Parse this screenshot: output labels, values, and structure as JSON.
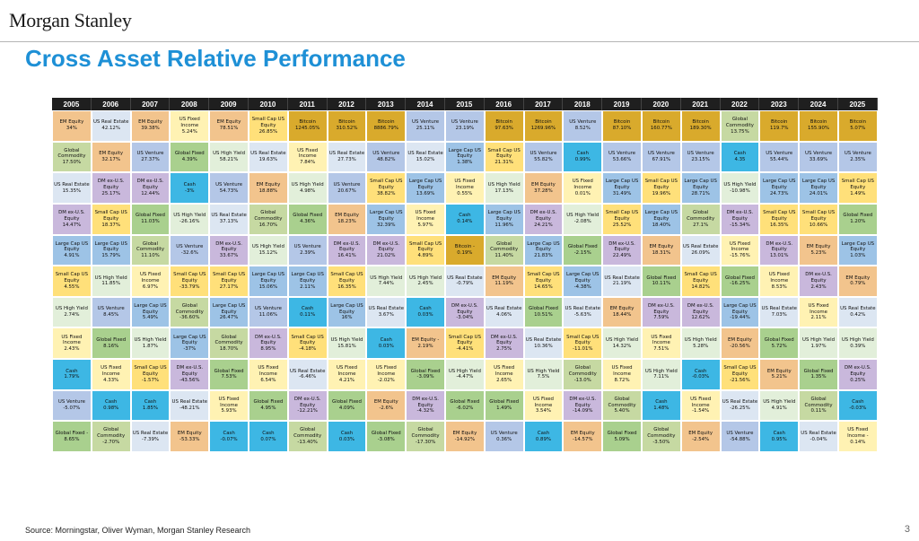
{
  "header": {
    "brand": "Morgan Stanley",
    "title": "Cross Asset Relative Performance"
  },
  "footer": {
    "source": "Source: Morningstar, Oliver Wyman, Morgan Stanley Research",
    "page": "3"
  },
  "asset_colors": {
    "EM Equity": "#F2C48D",
    "US Real Estate": "#DCE6F2",
    "Global Commodity": "#C6D9A2",
    "US Fixed Income": "#FFF2B3",
    "Small Cap US Equity": "#FFE07A",
    "Bitcoin": "#D9AA2C",
    "US Venture": "#B4C7E7",
    "Large Cap US Equity": "#9DC3E6",
    "US High Yield": "#E2EFDA",
    "DM ex-U.S. Equity": "#C9B8DC",
    "Global Fixed": "#A9D08E",
    "Cash": "#3DB7E4"
  },
  "chart_data": {
    "type": "table",
    "title": "Cross Asset Relative Performance",
    "years": [
      "2005",
      "2006",
      "2007",
      "2008",
      "2009",
      "2010",
      "2011",
      "2012",
      "2013",
      "2014",
      "2015",
      "2016",
      "2017",
      "2018",
      "2019",
      "2020",
      "2021",
      "2022",
      "2023",
      "2024",
      "2025"
    ],
    "columns": [
      [
        [
          "EM Equity",
          "34%"
        ],
        [
          "Global Commodity",
          "17.50%"
        ],
        [
          "US Real Estate",
          "15.35%"
        ],
        [
          "DM ex-U.S. Equity",
          "14.47%"
        ],
        [
          "Large Cap US Equity",
          "4.91%"
        ],
        [
          "Small Cap US Equity",
          "4.55%"
        ],
        [
          "US High Yield",
          "2.74%"
        ],
        [
          "US Fixed Income",
          "2.43%"
        ],
        [
          "Cash",
          "1.79%"
        ],
        [
          "US Venture",
          "-5.07%"
        ],
        [
          "Global Fixed -",
          "8.65%"
        ]
      ],
      [
        [
          "US Real Estate",
          "42.12%"
        ],
        [
          "EM Equity",
          "32.17%"
        ],
        [
          "DM ex-U.S. Equity",
          "25.17%"
        ],
        [
          "Small Cap US Equity",
          "18.37%"
        ],
        [
          "Large Cap US Equity",
          "15.79%"
        ],
        [
          "US High Yield",
          "11.85%"
        ],
        [
          "US Venture",
          "8.45%"
        ],
        [
          "Global Fixed",
          "8.16%"
        ],
        [
          "US Fixed Income",
          "4.33%"
        ],
        [
          "Cash",
          "0.98%"
        ],
        [
          "Global Commodity",
          "-2.70%"
        ]
      ],
      [
        [
          "EM Equity",
          "39.38%"
        ],
        [
          "US Venture",
          "27.37%"
        ],
        [
          "DM ex-U.S. Equity",
          "12.44%"
        ],
        [
          "Global Fixed",
          "11.03%"
        ],
        [
          "Global Commodity",
          "11.10%"
        ],
        [
          "US Fixed Income",
          "6.97%"
        ],
        [
          "Large Cap US Equity",
          "5.49%"
        ],
        [
          "US High Yield",
          "1.87%"
        ],
        [
          "Small Cap US Equity",
          "-1.57%"
        ],
        [
          "Cash",
          "1.85%"
        ],
        [
          "US Real Estate",
          "-7.39%"
        ]
      ],
      [
        [
          "US Fixed Income",
          "5.24%"
        ],
        [
          "Global Fixed",
          "4.39%"
        ],
        [
          "Cash",
          "-3%"
        ],
        [
          "US High Yield",
          "-26.16%"
        ],
        [
          "US Venture",
          "-32.6%"
        ],
        [
          "Small Cap US Equity",
          "-33.79%"
        ],
        [
          "Global Commodity",
          "-36.60%"
        ],
        [
          "Large Cap US Equity",
          "-37%"
        ],
        [
          "DM ex-U.S. Equity",
          "-43.56%"
        ],
        [
          "US Real Estate",
          "-48.21%"
        ],
        [
          "EM Equity",
          "-53.33%"
        ]
      ],
      [
        [
          "EM Equity",
          "78.51%"
        ],
        [
          "US High Yield",
          "58.21%"
        ],
        [
          "US Venture",
          "54.73%"
        ],
        [
          "US Real Estate",
          "37.13%"
        ],
        [
          "DM ex-U.S. Equity",
          "33.67%"
        ],
        [
          "Small Cap US Equity",
          "27.17%"
        ],
        [
          "Large Cap US Equity",
          "26.47%"
        ],
        [
          "Global Commodity",
          "18.70%"
        ],
        [
          "Global Fixed",
          "7.53%"
        ],
        [
          "US Fixed Income",
          "5.93%"
        ],
        [
          "Cash",
          "-0.07%"
        ]
      ],
      [
        [
          "Small Cap US Equity",
          "26.85%"
        ],
        [
          "US Real Estate",
          "19.63%"
        ],
        [
          "EM Equity",
          "18.88%"
        ],
        [
          "Global Commodity",
          "16.70%"
        ],
        [
          "US High Yield",
          "15.12%"
        ],
        [
          "Large Cap US Equity",
          "15.06%"
        ],
        [
          "US Venture",
          "11.06%"
        ],
        [
          "DM ex-U.S. Equity",
          "8.95%"
        ],
        [
          "US Fixed Income",
          "6.54%"
        ],
        [
          "Global Fixed",
          "4.95%"
        ],
        [
          "Cash",
          "0.07%"
        ]
      ],
      [
        [
          "Bitcoin",
          "1245.05%"
        ],
        [
          "US Fixed Income",
          "7.84%"
        ],
        [
          "US High Yield",
          "4.98%"
        ],
        [
          "Global Fixed",
          "4.36%"
        ],
        [
          "US Venture",
          "2.39%"
        ],
        [
          "Large Cap US Equity",
          "2.11%"
        ],
        [
          "Cash",
          "0.11%"
        ],
        [
          "Small Cap US Equity",
          "-4.18%"
        ],
        [
          "US Real Estate",
          "-6.46%"
        ],
        [
          "DM ex-U.S. Equity",
          "-12.21%"
        ],
        [
          "Global Commodity",
          "-13.40%"
        ]
      ],
      [
        [
          "Bitcoin",
          "310.52%"
        ],
        [
          "US Real Estate",
          "27.73%"
        ],
        [
          "US Venture",
          "20.67%"
        ],
        [
          "EM Equity",
          "18.23%"
        ],
        [
          "DM ex-U.S. Equity",
          "16.41%"
        ],
        [
          "Small Cap US Equity",
          "16.35%"
        ],
        [
          "Large Cap US Equity",
          "16%"
        ],
        [
          "US High Yield",
          "15.81%"
        ],
        [
          "US Fixed Income",
          "4.21%"
        ],
        [
          "Global Fixed",
          "4.09%"
        ],
        [
          "Cash",
          "0.03%"
        ]
      ],
      [
        [
          "Bitcoin",
          "8886.79%"
        ],
        [
          "US Venture",
          "48.82%"
        ],
        [
          "Small Cap US Equity",
          "38.82%"
        ],
        [
          "Large Cap US Equity",
          "32.39%"
        ],
        [
          "DM ex-U.S. Equity",
          "21.02%"
        ],
        [
          "US High Yield",
          "7.44%"
        ],
        [
          "US Real Estate",
          "3.67%"
        ],
        [
          "Cash",
          "0.03%"
        ],
        [
          "US Fixed Income",
          "-2.02%"
        ],
        [
          "EM Equity",
          "-2.6%"
        ],
        [
          "Global Fixed",
          "-3.08%"
        ]
      ],
      [
        [
          "US Venture",
          "25.11%"
        ],
        [
          "US Real Estate",
          "15.02%"
        ],
        [
          "Large Cap US Equity",
          "13.69%"
        ],
        [
          "US Fixed Income",
          "5.97%"
        ],
        [
          "Small Cap US Equity",
          "4.89%"
        ],
        [
          "US High Yield",
          "2.45%"
        ],
        [
          "Cash",
          "0.03%"
        ],
        [
          "EM Equity -",
          "2.19%"
        ],
        [
          "Global Fixed",
          "-3.09%"
        ],
        [
          "DM ex-U.S. Equity",
          "-4.32%"
        ],
        [
          "Global Commodity",
          "-17.30%"
        ]
      ],
      [
        [
          "US Venture",
          "23.19%"
        ],
        [
          "Large Cap US Equity",
          "1.38%"
        ],
        [
          "US Fixed Income",
          "0.55%"
        ],
        [
          "Cash",
          "0.14%"
        ],
        [
          "Bitcoin -",
          "0.19%"
        ],
        [
          "US Real Estate",
          "-0.79%"
        ],
        [
          "DM ex-U.S. Equity",
          "-3.04%"
        ],
        [
          "Small Cap US Equity",
          "-4.41%"
        ],
        [
          "US High Yield",
          "-4.47%"
        ],
        [
          "Global Fixed",
          "-6.02%"
        ],
        [
          "EM Equity",
          "-14.92%"
        ]
      ],
      [
        [
          "Bitcoin",
          "97.63%"
        ],
        [
          "Small Cap US Equity",
          "21.31%"
        ],
        [
          "US High Yield",
          "17.13%"
        ],
        [
          "Large Cap US Equity",
          "11.96%"
        ],
        [
          "Global Commodity",
          "11.40%"
        ],
        [
          "EM Equity",
          "11.19%"
        ],
        [
          "US Real Estate",
          "4.06%"
        ],
        [
          "DM ex-U.S. Equity",
          "2.75%"
        ],
        [
          "US Fixed Income",
          "2.65%"
        ],
        [
          "Global Fixed",
          "1.49%"
        ],
        [
          "US Venture",
          "0.36%"
        ]
      ],
      [
        [
          "Bitcoin",
          "1269.96%"
        ],
        [
          "US Venture",
          "55.82%"
        ],
        [
          "EM Equity",
          "37.28%"
        ],
        [
          "DM ex-U.S. Equity",
          "24.21%"
        ],
        [
          "Large Cap US Equity",
          "21.83%"
        ],
        [
          "Small Cap US Equity",
          "14.65%"
        ],
        [
          "Global Fixed",
          "10.51%"
        ],
        [
          "US Real Estate",
          "10.36%"
        ],
        [
          "US High Yield",
          "7.5%"
        ],
        [
          "US Fixed Income",
          "3.54%"
        ],
        [
          "Cash",
          "0.89%"
        ]
      ],
      [
        [
          "US Venture",
          "8.52%"
        ],
        [
          "Cash",
          "0.99%"
        ],
        [
          "US Fixed Income",
          "0.01%"
        ],
        [
          "US High Yield",
          "-2.08%"
        ],
        [
          "Global Fixed",
          "-2.15%"
        ],
        [
          "Large Cap US Equity",
          "-4.38%"
        ],
        [
          "US Real Estate",
          "-5.63%"
        ],
        [
          "Small Cap US Equity",
          "-11.01%"
        ],
        [
          "Global Commodity",
          "-13.0%"
        ],
        [
          "DM ex-U.S. Equity",
          "-14.09%"
        ],
        [
          "EM Equity",
          "-14.57%"
        ]
      ],
      [
        [
          "Bitcoin",
          "87.10%"
        ],
        [
          "US Venture",
          "53.66%"
        ],
        [
          "Large Cap US Equity",
          "31.49%"
        ],
        [
          "Small Cap US Equity",
          "25.52%"
        ],
        [
          "DM ex-U.S. Equity",
          "22.49%"
        ],
        [
          "US Real Estate",
          "21.19%"
        ],
        [
          "EM Equity",
          "18.44%"
        ],
        [
          "US High Yield",
          "14.32%"
        ],
        [
          "US Fixed Income",
          "8.72%"
        ],
        [
          "Global Commodity",
          "5.40%"
        ],
        [
          "Global Fixed",
          "5.09%"
        ]
      ],
      [
        [
          "Bitcoin",
          "160.77%"
        ],
        [
          "US Venture",
          "67.91%"
        ],
        [
          "Small Cap US Equity",
          "19.96%"
        ],
        [
          "Large Cap US Equity",
          "18.40%"
        ],
        [
          "EM Equity",
          "18.31%"
        ],
        [
          "Global Fixed",
          "10.11%"
        ],
        [
          "DM ex-U.S. Equity",
          "7.59%"
        ],
        [
          "US Fixed Income",
          "7.51%"
        ],
        [
          "US High Yield",
          "7.11%"
        ],
        [
          "Cash",
          "1.48%"
        ],
        [
          "Global Commodity",
          "-3.50%"
        ]
      ],
      [
        [
          "Bitcoin",
          "189.30%"
        ],
        [
          "US Venture",
          "23.15%"
        ],
        [
          "Large Cap US Equity",
          "28.71%"
        ],
        [
          "Global Commodity",
          "27.1%"
        ],
        [
          "US Real Estate",
          "26.09%"
        ],
        [
          "Small Cap US Equity",
          "14.82%"
        ],
        [
          "DM ex-U.S. Equity",
          "12.62%"
        ],
        [
          "US High Yield",
          "5.28%"
        ],
        [
          "Cash",
          "-0.03%"
        ],
        [
          "US Fixed Income",
          "-1.54%"
        ],
        [
          "EM Equity",
          "-2.54%"
        ]
      ],
      [
        [
          "Global Commodity",
          "13.75%"
        ],
        [
          "Cash",
          "4.35"
        ],
        [
          "US High Yield",
          "-10.98%"
        ],
        [
          "DM ex-U.S. Equity",
          "-15.34%"
        ],
        [
          "US Fixed Income",
          "-15.76%"
        ],
        [
          "Global Fixed",
          "-16.25%"
        ],
        [
          "Large Cap US Equity",
          "-19.44%"
        ],
        [
          "EM Equity",
          "-20.56%"
        ],
        [
          "Small Cap US Equity",
          "-21.56%"
        ],
        [
          "US Real Estate",
          "-26.25%"
        ],
        [
          "US Venture",
          "-54.88%"
        ]
      ],
      [
        [
          "Bitcoin",
          "119.7%"
        ],
        [
          "US Venture",
          "55.44%"
        ],
        [
          "Large Cap US Equity",
          "24.73%"
        ],
        [
          "Small Cap US Equity",
          "16.35%"
        ],
        [
          "DM ex-U.S. Equity",
          "13.01%"
        ],
        [
          "US Fixed Income",
          "8.53%"
        ],
        [
          "US Real Estate",
          "7.03%"
        ],
        [
          "Global Fixed",
          "5.72%"
        ],
        [
          "EM Equity",
          "5.21%"
        ],
        [
          "US High Yield",
          "4.91%"
        ],
        [
          "Cash",
          "0.95%"
        ]
      ],
      [
        [
          "Bitcoin",
          "155.90%"
        ],
        [
          "US Venture",
          "33.69%"
        ],
        [
          "Large Cap US Equity",
          "24.01%"
        ],
        [
          "Small Cap US Equity",
          "10.66%"
        ],
        [
          "EM Equity",
          "5.23%"
        ],
        [
          "DM ex-U.S. Equity",
          "2.43%"
        ],
        [
          "US Fixed Income",
          "2.11%"
        ],
        [
          "US High Yield",
          "1.97%"
        ],
        [
          "Global Fixed",
          "1.35%"
        ],
        [
          "Global Commodity",
          "0.11%"
        ],
        [
          "US Real Estate",
          "-0.04%"
        ]
      ],
      [
        [
          "Bitcoin",
          "5.07%"
        ],
        [
          "US Venture",
          "2.35%"
        ],
        [
          "Small Cap US Equity",
          "1.49%"
        ],
        [
          "Global Fixed",
          "1.20%"
        ],
        [
          "Large Cap US Equity",
          "1.03%"
        ],
        [
          "EM Equity",
          "0.79%"
        ],
        [
          "US Real Estate",
          "0.42%"
        ],
        [
          "US High Yield",
          "0.39%"
        ],
        [
          "DM ex-U.S. Equity",
          "0.25%"
        ],
        [
          "Cash",
          "-0.03%"
        ],
        [
          "US Fixed Income -",
          "0.14%"
        ]
      ]
    ]
  }
}
